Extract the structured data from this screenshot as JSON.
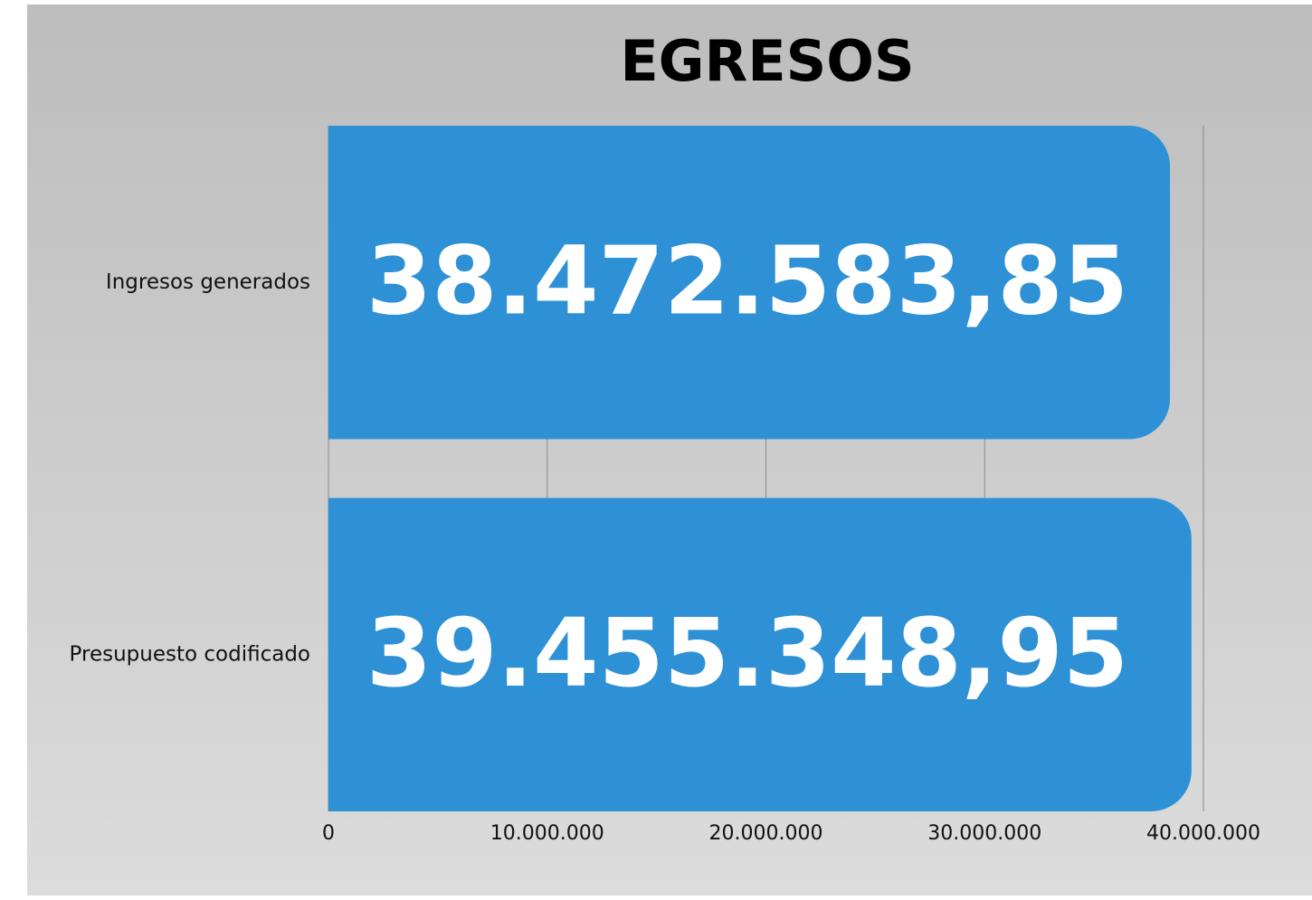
{
  "chart_data": {
    "type": "bar",
    "orientation": "horizontal",
    "title": "EGRESOS",
    "categories": [
      "Ingresos generados",
      "Presupuesto codificado"
    ],
    "values": [
      38472583.85,
      39455348.95
    ],
    "value_labels": [
      "38.472.583,85",
      "39.455.348,95"
    ],
    "color": "#2e91d6",
    "xlim": [
      0,
      40000000
    ],
    "xticks": [
      0,
      {
        "value": 10000000,
        "label": "10.000.000"
      },
      {
        "value": 20000000,
        "label": "20.000.000"
      },
      {
        "value": 30000000,
        "label": "30.000.000"
      },
      {
        "value": 40000000,
        "label": "40.000.000"
      }
    ],
    "grid": true
  }
}
